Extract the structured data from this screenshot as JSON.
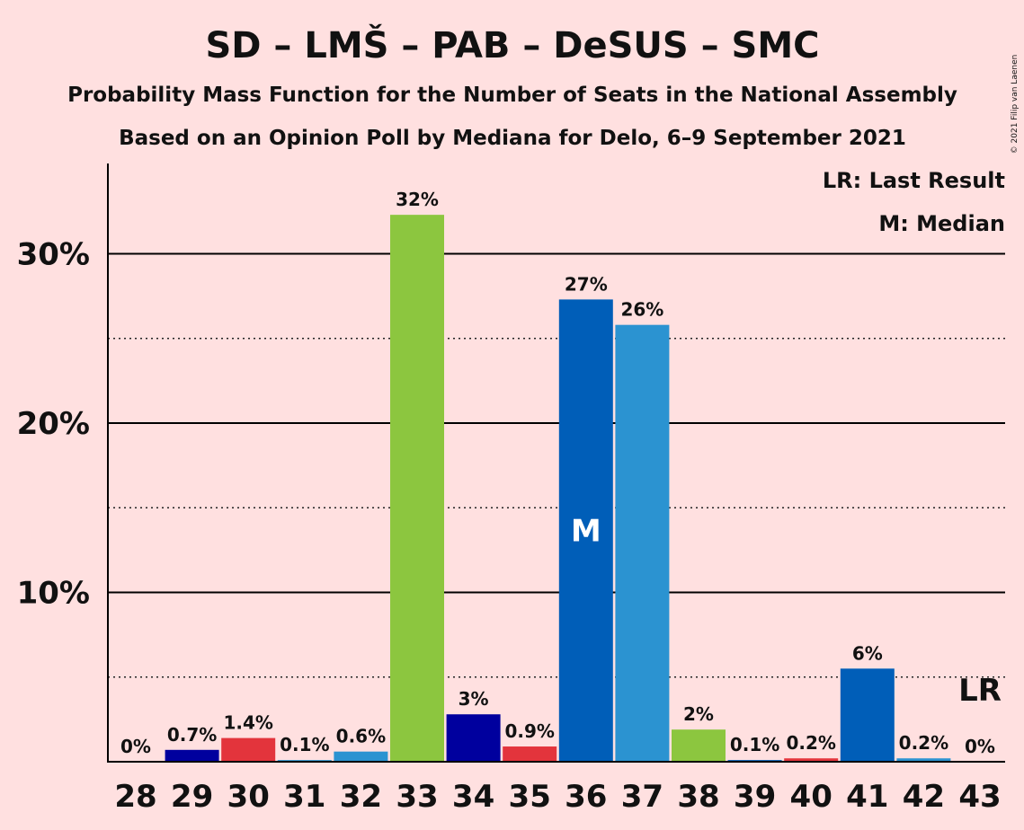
{
  "chart_data": {
    "type": "bar",
    "title": "SD – LMŠ – PAB – DeSUS – SMC",
    "subtitle": "Probability Mass Function for the Number of Seats in the National Assembly",
    "subtitle2": "Based on an Opinion Poll by Mediana for Delo, 6–9 September 2021",
    "copyright": "© 2021 Filip van Laenen",
    "legend": {
      "last_result": "LR: Last Result",
      "median": "M: Median",
      "placement": "top-right"
    },
    "categories": [
      "28",
      "29",
      "30",
      "31",
      "32",
      "33",
      "34",
      "35",
      "36",
      "37",
      "38",
      "39",
      "40",
      "41",
      "42",
      "43"
    ],
    "values": [
      0,
      0.7,
      1.4,
      0.1,
      0.6,
      32.3,
      2.8,
      0.9,
      27.3,
      25.8,
      1.9,
      0.1,
      0.2,
      5.5,
      0.2,
      0
    ],
    "value_labels": [
      "0%",
      "0.7%",
      "1.4%",
      "0.1%",
      "0.6%",
      "32%",
      "3%",
      "0.9%",
      "27%",
      "26%",
      "2%",
      "0.1%",
      "0.2%",
      "6%",
      "0.2%",
      "0%"
    ],
    "bar_colors": [
      "#005EB8",
      "#00009E",
      "#E3343C",
      "#2B93D1",
      "#2B93D1",
      "#8CC63F",
      "#00009E",
      "#E3343C",
      "#005EB8",
      "#2B93D1",
      "#8CC63F",
      "#005EB8",
      "#E3343C",
      "#005EB8",
      "#2B93D1",
      "#005EB8"
    ],
    "median_seat": "36",
    "median_marker": "M",
    "last_result_seat": "43",
    "last_result_marker": "LR",
    "yticks": [
      {
        "value": 10,
        "label": "10%"
      },
      {
        "value": 20,
        "label": "20%"
      },
      {
        "value": 30,
        "label": "30%"
      }
    ],
    "dotted_gridlines": [
      5,
      15,
      25
    ],
    "ylim": [
      0,
      35
    ],
    "xlabel": "",
    "ylabel": ""
  }
}
